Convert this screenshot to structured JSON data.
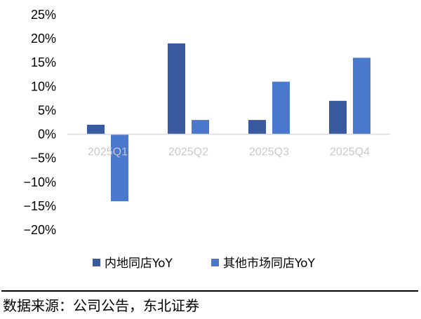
{
  "chart_data": {
    "type": "bar",
    "categories": [
      "2025Q1",
      "2025Q2",
      "2025Q3",
      "2025Q4"
    ],
    "series": [
      {
        "name": "内地同店YoY",
        "color": "#3a5aa0",
        "values": [
          2,
          19,
          3,
          7
        ]
      },
      {
        "name": "其他市场同店YoY",
        "color": "#4a78cc",
        "values": [
          -14,
          3,
          11,
          16
        ]
      }
    ],
    "ylim": [
      -20,
      25
    ],
    "yticks": [
      25,
      20,
      15,
      10,
      5,
      0,
      -5,
      -10,
      -15,
      -20
    ],
    "ytick_format": "percent",
    "legend_position": "bottom",
    "grid": false
  },
  "footer": {
    "source": "数据来源：公司公告，东北证券"
  }
}
